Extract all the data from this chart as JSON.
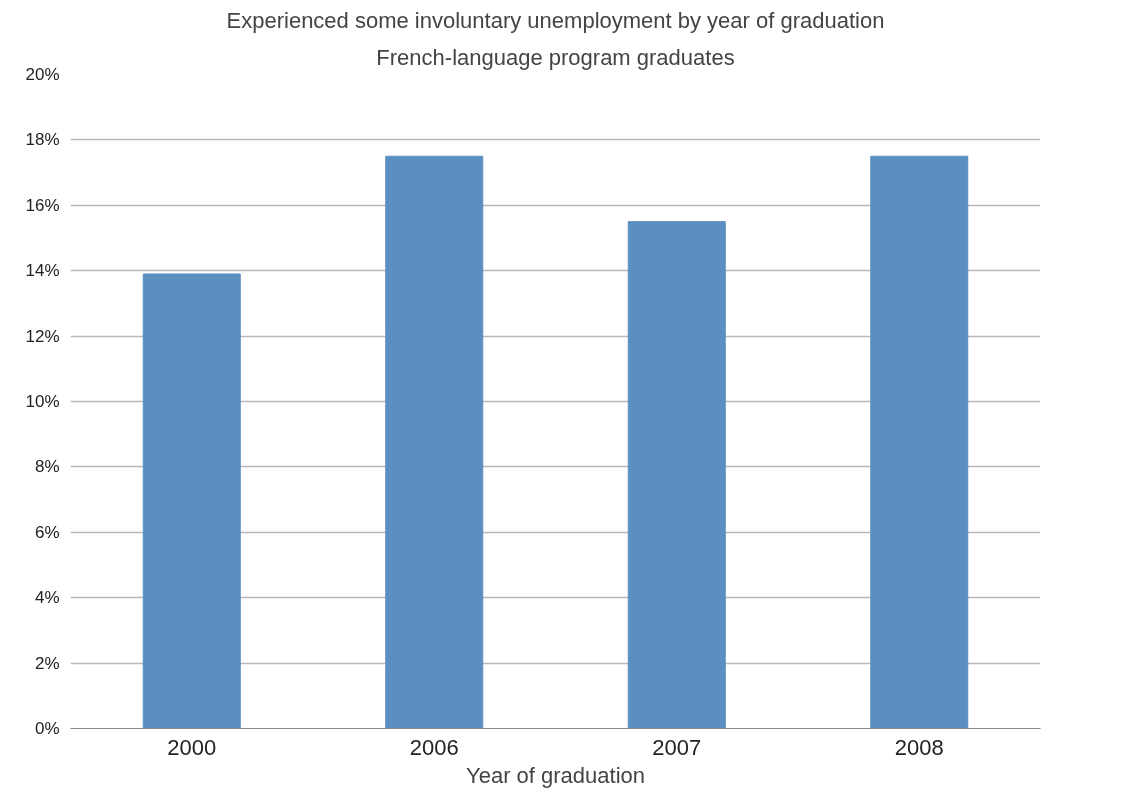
{
  "chart_data": {
    "type": "bar",
    "title": "Experienced some involuntary unemployment by year of graduation",
    "subtitle": "French-language program graduates",
    "xlabel": "Year of graduation",
    "categories": [
      "2000",
      "2006",
      "2007",
      "2008"
    ],
    "series": [
      {
        "color": "#5b8ec1",
        "values": [
          13.9,
          17.5,
          15.5,
          17.5
        ]
      }
    ],
    "ylim": [
      0,
      20
    ],
    "yticks": [
      {
        "value": 0,
        "label": "0%"
      },
      {
        "value": 2,
        "label": "2%"
      },
      {
        "value": 4,
        "label": "4%"
      },
      {
        "value": 6,
        "label": "6%"
      },
      {
        "value": 8,
        "label": "8%"
      },
      {
        "value": 10,
        "label": "10%"
      },
      {
        "value": 12,
        "label": "12%"
      },
      {
        "value": 14,
        "label": "14%"
      },
      {
        "value": 16,
        "label": "16%"
      },
      {
        "value": 18,
        "label": "18%"
      },
      {
        "value": 20,
        "label": "20%"
      }
    ],
    "grid": "y"
  }
}
